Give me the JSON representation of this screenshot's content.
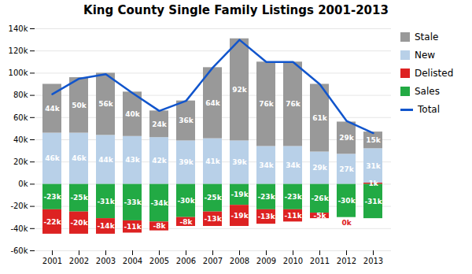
{
  "chart_data": {
    "type": "bar",
    "title": "King County Single Family Listings 2001-2013",
    "categories": [
      "2001",
      "2002",
      "2003",
      "2004",
      "2005",
      "2006",
      "2007",
      "2008",
      "2009",
      "2010",
      "2011",
      "2012",
      "2013"
    ],
    "series": [
      {
        "name": "Stale",
        "color": "#999999",
        "values": [
          44,
          50,
          56,
          40,
          24,
          36,
          64,
          92,
          76,
          76,
          61,
          29,
          15
        ],
        "value_labels": [
          "44k",
          "50k",
          "56k",
          "40k",
          "24k",
          "36k",
          "64k",
          "92k",
          "76k",
          "76k",
          "61k",
          "29k",
          "15k"
        ]
      },
      {
        "name": "New",
        "color": "#b8d0e8",
        "values": [
          46,
          46,
          44,
          43,
          42,
          39,
          41,
          39,
          34,
          34,
          29,
          27,
          31
        ],
        "value_labels": [
          "46k",
          "46k",
          "44k",
          "43k",
          "42k",
          "39k",
          "41k",
          "39k",
          "34k",
          "34k",
          "29k",
          "27k",
          "31k"
        ]
      },
      {
        "name": "Delisted",
        "color": "#dd2222",
        "values": [
          -22,
          -20,
          -14,
          -11,
          -8,
          -8,
          -13,
          -19,
          -13,
          -11,
          -5,
          0,
          1
        ],
        "value_labels": [
          "-22k",
          "-20k",
          "-14k",
          "-11k",
          "-8k",
          "-8k",
          "-13k",
          "-19k",
          "-13k",
          "-11k",
          "-5k",
          "0k",
          "1k"
        ]
      },
      {
        "name": "Sales",
        "color": "#22aa44",
        "values": [
          -23,
          -25,
          -31,
          -33,
          -34,
          -30,
          -25,
          -19,
          -23,
          -23,
          -26,
          -30,
          -31
        ],
        "value_labels": [
          "-23k",
          "-25k",
          "-31k",
          "-33k",
          "-34k",
          "-30k",
          "-25k",
          "-19k",
          "-23k",
          "-23k",
          "-26k",
          "-30k",
          "-31k"
        ]
      },
      {
        "name": "Total",
        "color": "#1155cc",
        "type": "line",
        "values": [
          81,
          95,
          99,
          82,
          66,
          75,
          105,
          130,
          110,
          110,
          90,
          57,
          46
        ]
      }
    ],
    "stacked": true,
    "data_labels": true,
    "ylim": [
      -60,
      140
    ],
    "yticks": [
      {
        "value": -60,
        "label": "-60k"
      },
      {
        "value": -40,
        "label": "-40k"
      },
      {
        "value": -20,
        "label": "-20k"
      },
      {
        "value": 0,
        "label": "0k"
      },
      {
        "value": 20,
        "label": "20k"
      },
      {
        "value": 40,
        "label": "40k"
      },
      {
        "value": 60,
        "label": "60k"
      },
      {
        "value": 80,
        "label": "80k"
      },
      {
        "value": 100,
        "label": "100k"
      },
      {
        "value": 120,
        "label": "120k"
      },
      {
        "value": 140,
        "label": "140k"
      }
    ],
    "grid": true,
    "legend": "right"
  }
}
